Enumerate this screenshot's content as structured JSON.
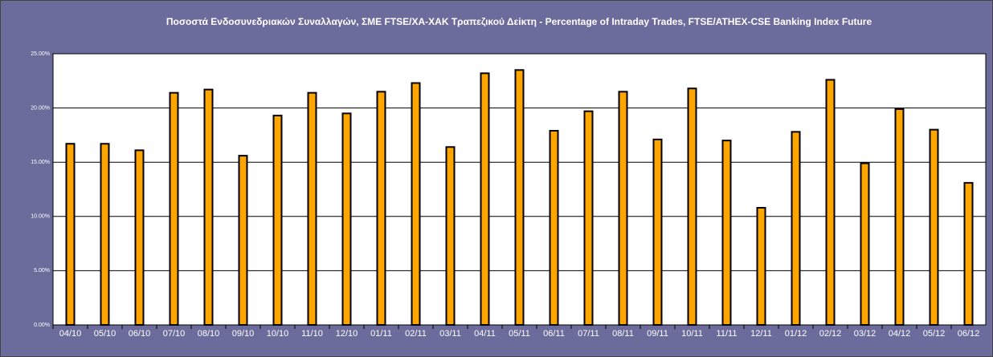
{
  "chart_data": {
    "type": "bar",
    "title": "Ποσοστά Ενδοσυνεδριακών Συναλλαγών, ΣΜΕ FTSE/ΧΑ-ΧΑΚ Τραπεζικού Δείκτη - Percentage of Intraday Trades, FTSE/ATHEX-CSE Banking Index Future",
    "categories": [
      "04/10",
      "05/10",
      "06/10",
      "07/10",
      "08/10",
      "09/10",
      "10/10",
      "11/10",
      "12/10",
      "01/11",
      "02/11",
      "03/11",
      "04/11",
      "05/11",
      "06/11",
      "07/11",
      "08/11",
      "09/11",
      "10/11",
      "11/11",
      "12/11",
      "01/12",
      "02/12",
      "03/12",
      "04/12",
      "05/12",
      "06/12"
    ],
    "values": [
      16.7,
      16.7,
      16.1,
      21.4,
      21.7,
      15.6,
      19.3,
      21.4,
      19.5,
      21.5,
      22.3,
      16.4,
      23.2,
      23.5,
      17.9,
      19.7,
      21.5,
      17.1,
      21.8,
      17.0,
      10.8,
      17.8,
      22.6,
      14.9,
      19.9,
      18.0,
      13.1
    ],
    "color": "#ffa500",
    "ylim": [
      0,
      25
    ],
    "yticks": [
      {
        "value": 0,
        "label": "0.00%"
      },
      {
        "value": 5,
        "label": "5.00%"
      },
      {
        "value": 10,
        "label": "10.00%"
      },
      {
        "value": 15,
        "label": "15.00%"
      },
      {
        "value": 20,
        "label": "20.00%"
      },
      {
        "value": 25,
        "label": "25.00%"
      }
    ],
    "grid": true
  }
}
